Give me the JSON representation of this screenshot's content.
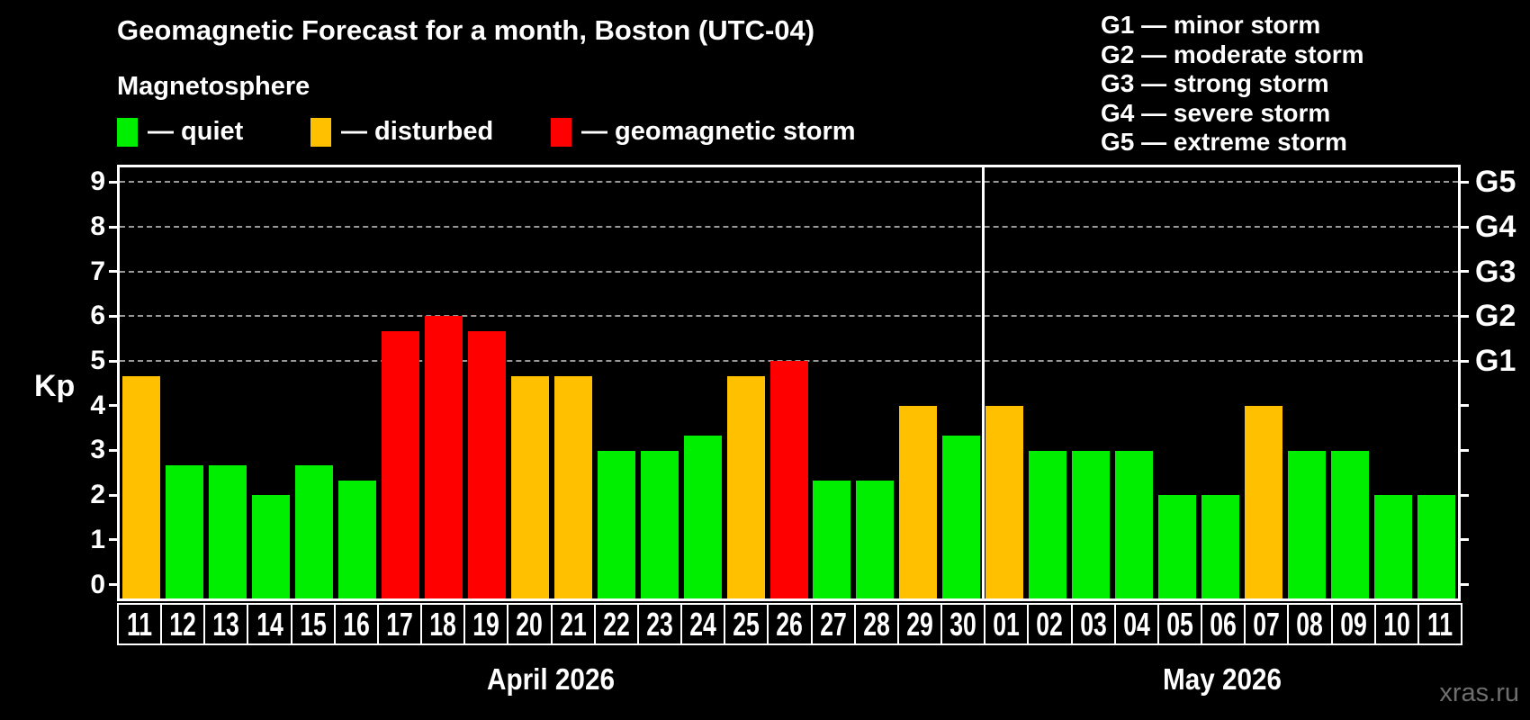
{
  "title": "Geomagnetic Forecast for a month, Boston (UTC-04)",
  "subtitle": "Magnetosphere",
  "legend": {
    "items": [
      {
        "key": "quiet",
        "label": "— quiet"
      },
      {
        "key": "disturbed",
        "label": "— disturbed"
      },
      {
        "key": "storm",
        "label": "— geomagnetic storm"
      }
    ]
  },
  "colors": {
    "quiet": "#00ef00",
    "disturbed": "#ffc000",
    "storm": "#ff0000",
    "axis": "#ffffff",
    "gridline": "#999999",
    "background": "#000000",
    "watermark_text": "#6e6e6e"
  },
  "g_scale_legend": [
    "G1 — minor storm",
    "G2 — moderate storm",
    "G3 — strong storm",
    "G4 — severe storm",
    "G5 — extreme storm"
  ],
  "watermark": "xras.ru",
  "chart_data": {
    "type": "bar",
    "ylabel": "Kp",
    "ylim": [
      0,
      9
    ],
    "yticks": [
      0,
      1,
      2,
      3,
      4,
      5,
      6,
      7,
      8,
      9
    ],
    "gridlines_at": [
      5,
      6,
      7,
      8,
      9
    ],
    "grid": "dashed horizontal at Kp 5-9 only",
    "legend_position": "top-left",
    "right_axis_labels": [
      {
        "label": "G1",
        "kp": 5
      },
      {
        "label": "G2",
        "kp": 6
      },
      {
        "label": "G3",
        "kp": 7
      },
      {
        "label": "G4",
        "kp": 8
      },
      {
        "label": "G5",
        "kp": 9
      }
    ],
    "months": [
      {
        "label": "April 2026",
        "days": 20
      },
      {
        "label": "May 2026",
        "days": 11
      }
    ],
    "series": [
      {
        "day": "11",
        "kp": 4.67,
        "status": "disturbed"
      },
      {
        "day": "12",
        "kp": 2.67,
        "status": "quiet"
      },
      {
        "day": "13",
        "kp": 2.67,
        "status": "quiet"
      },
      {
        "day": "14",
        "kp": 2.0,
        "status": "quiet"
      },
      {
        "day": "15",
        "kp": 2.67,
        "status": "quiet"
      },
      {
        "day": "16",
        "kp": 2.33,
        "status": "quiet"
      },
      {
        "day": "17",
        "kp": 5.67,
        "status": "storm"
      },
      {
        "day": "18",
        "kp": 6.0,
        "status": "storm"
      },
      {
        "day": "19",
        "kp": 5.67,
        "status": "storm"
      },
      {
        "day": "20",
        "kp": 4.67,
        "status": "disturbed"
      },
      {
        "day": "21",
        "kp": 4.67,
        "status": "disturbed"
      },
      {
        "day": "22",
        "kp": 3.0,
        "status": "quiet"
      },
      {
        "day": "23",
        "kp": 3.0,
        "status": "quiet"
      },
      {
        "day": "24",
        "kp": 3.33,
        "status": "quiet"
      },
      {
        "day": "25",
        "kp": 4.67,
        "status": "disturbed"
      },
      {
        "day": "26",
        "kp": 5.0,
        "status": "storm"
      },
      {
        "day": "27",
        "kp": 2.33,
        "status": "quiet"
      },
      {
        "day": "28",
        "kp": 2.33,
        "status": "quiet"
      },
      {
        "day": "29",
        "kp": 4.0,
        "status": "disturbed"
      },
      {
        "day": "30",
        "kp": 3.33,
        "status": "quiet"
      },
      {
        "day": "01",
        "kp": 4.0,
        "status": "disturbed"
      },
      {
        "day": "02",
        "kp": 3.0,
        "status": "quiet"
      },
      {
        "day": "03",
        "kp": 3.0,
        "status": "quiet"
      },
      {
        "day": "04",
        "kp": 3.0,
        "status": "quiet"
      },
      {
        "day": "05",
        "kp": 2.0,
        "status": "quiet"
      },
      {
        "day": "06",
        "kp": 2.0,
        "status": "quiet"
      },
      {
        "day": "07",
        "kp": 4.0,
        "status": "disturbed"
      },
      {
        "day": "08",
        "kp": 3.0,
        "status": "quiet"
      },
      {
        "day": "09",
        "kp": 3.0,
        "status": "quiet"
      },
      {
        "day": "10",
        "kp": 2.0,
        "status": "quiet"
      },
      {
        "day": "11",
        "kp": 2.0,
        "status": "quiet"
      }
    ]
  }
}
